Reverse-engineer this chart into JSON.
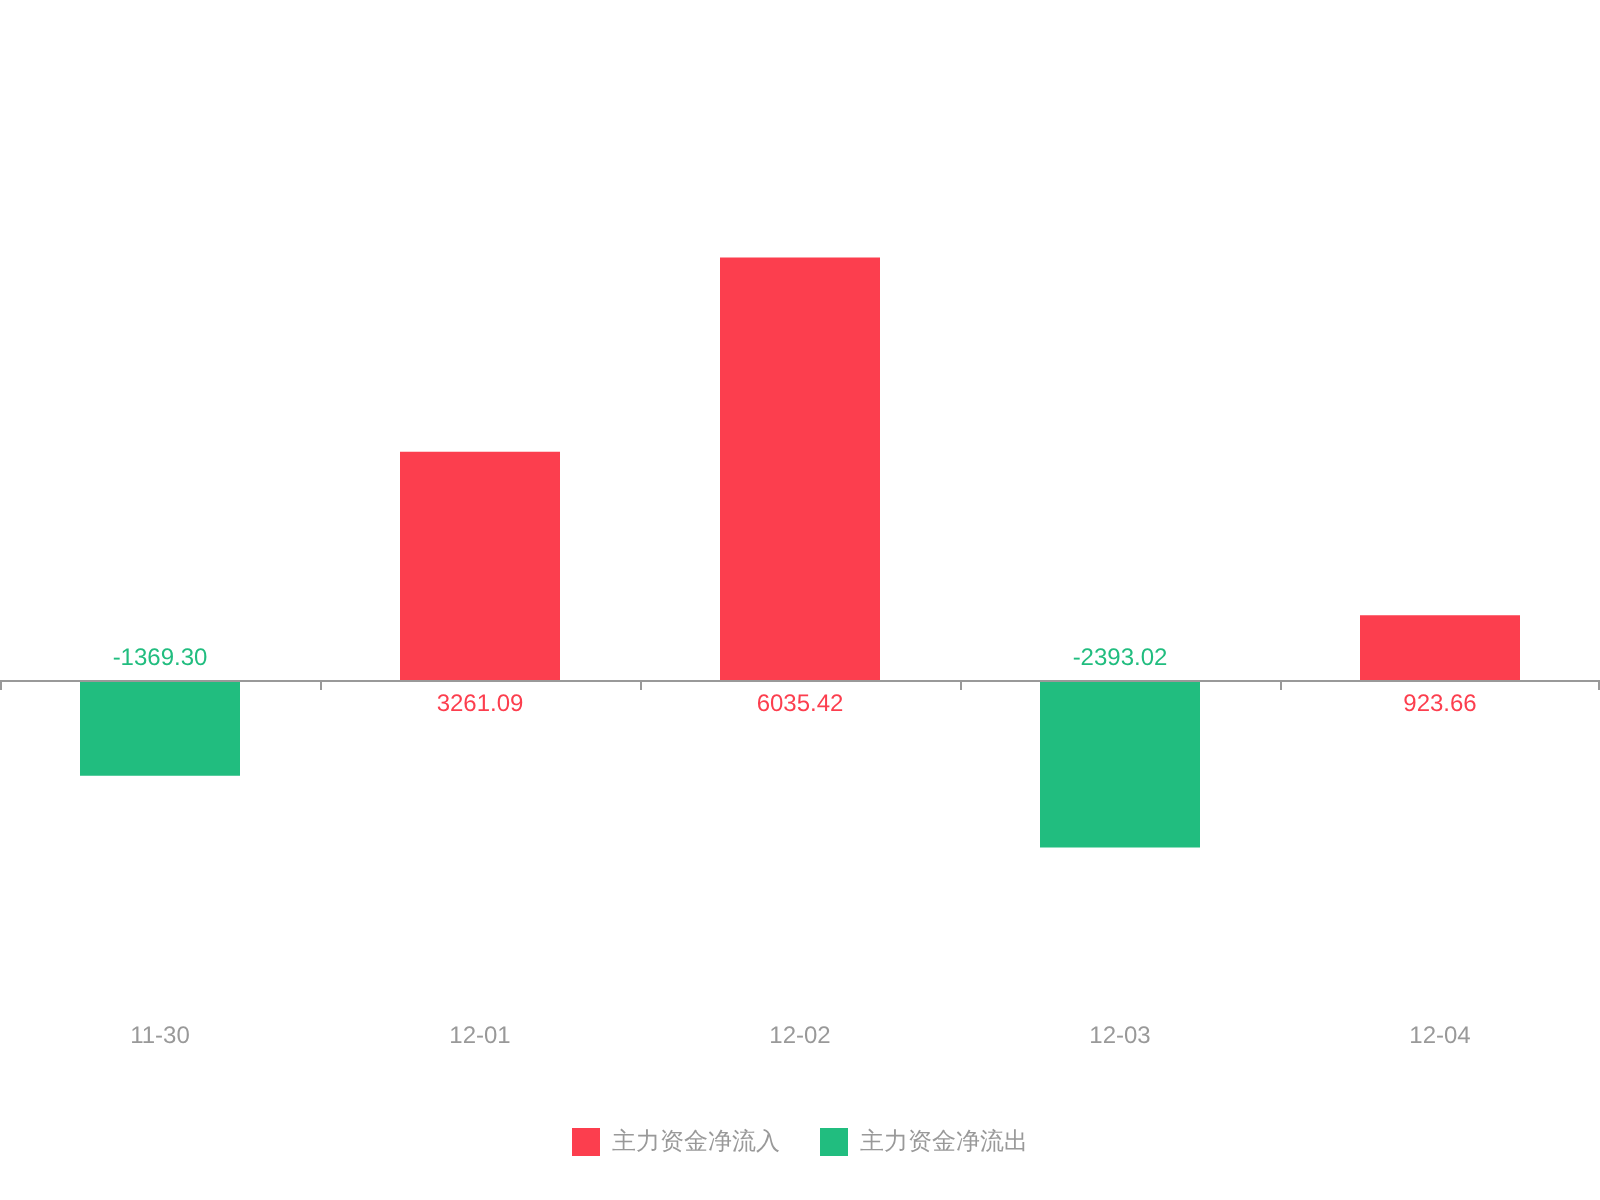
{
  "chart_data": {
    "type": "bar",
    "categories": [
      "11-30",
      "12-01",
      "12-02",
      "12-03",
      "12-04"
    ],
    "stacked": true,
    "series": [
      {
        "name": "主力资金净流入",
        "color": "#fc3e4e",
        "values": [
          null,
          3261.09,
          6035.42,
          null,
          923.66
        ],
        "value_labels": [
          null,
          "3261.09",
          "6035.42",
          null,
          "923.66"
        ]
      },
      {
        "name": "主力资金净流出",
        "color": "#21bd7f",
        "values": [
          -1369.3,
          null,
          null,
          -2393.02,
          null
        ],
        "value_labels": [
          "-1369.30",
          null,
          null,
          "-2393.02",
          null
        ]
      }
    ],
    "legend": "bottom",
    "grid": false,
    "tick_labels": "x"
  }
}
